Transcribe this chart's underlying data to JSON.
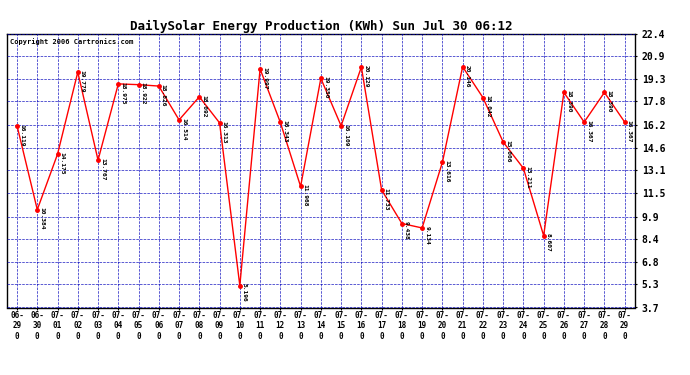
{
  "title": "DailySolar Energy Production (KWh) Sun Jul 30 06:12",
  "copyright": "Copyright 2006 Cartronics.com",
  "x_labels": [
    "06-\n29\n0",
    "06-\n30\n0",
    "07-\n01\n0",
    "07-\n02\n0",
    "07-\n03\n0",
    "07-\n04\n0",
    "07-\n05\n0",
    "07-\n06\n0",
    "07-\n07\n0",
    "07-\n08\n0",
    "07-\n09\n0",
    "07-\n10\n0",
    "07-\n11\n0",
    "07-\n12\n0",
    "07-\n13\n0",
    "07-\n14\n0",
    "07-\n15\n0",
    "07-\n16\n0",
    "07-\n17\n0",
    "07-\n18\n0",
    "07-\n19\n0",
    "07-\n20\n0",
    "07-\n21\n0",
    "07-\n22\n0",
    "07-\n23\n0",
    "07-\n24\n0",
    "07-\n25\n0",
    "07-\n26\n0",
    "07-\n27\n0",
    "07-\n28\n0",
    "07-\n29\n0"
  ],
  "x_labels_simple": [
    "06-29",
    "06-30",
    "07-01",
    "07-02",
    "07-03",
    "07-04",
    "07-05",
    "07-06",
    "07-07",
    "07-08",
    "07-09",
    "07-10",
    "07-11",
    "07-12",
    "07-13",
    "07-14",
    "07-15",
    "07-16",
    "07-17",
    "07-18",
    "07-19",
    "07-20",
    "07-21",
    "07-22",
    "07-23",
    "07-24",
    "07-25",
    "07-26",
    "07-27",
    "07-28",
    "07-29"
  ],
  "y_values": [
    16.119,
    10.384,
    14.175,
    19.779,
    13.767,
    18.975,
    18.922,
    18.826,
    16.514,
    18.092,
    16.313,
    5.196,
    19.997,
    16.343,
    11.968,
    19.35,
    16.109,
    20.129,
    11.733,
    9.438,
    9.134,
    13.616,
    20.146,
    18.042,
    15.006,
    13.211,
    8.607,
    18.39,
    16.367,
    18.39,
    16.367
  ],
  "y_ticks": [
    3.7,
    5.3,
    6.8,
    8.4,
    9.9,
    11.5,
    13.1,
    14.6,
    16.2,
    17.8,
    19.3,
    20.9,
    22.4
  ],
  "y_min": 3.7,
  "y_max": 22.4,
  "line_color": "red",
  "marker_color": "red",
  "bg_color": "white",
  "grid_color": "#0000bb",
  "text_color": "black"
}
